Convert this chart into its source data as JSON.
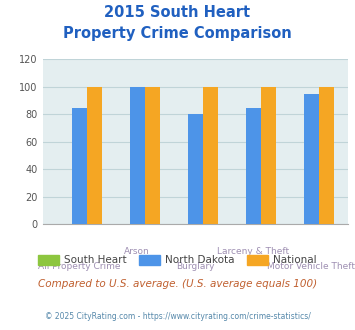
{
  "title_line1": "2015 South Heart",
  "title_line2": "Property Crime Comparison",
  "title_color": "#2060c0",
  "categories": [
    "All Property Crime",
    "Arson",
    "Burglary",
    "Larceny & Theft",
    "Motor Vehicle Theft"
  ],
  "south_heart": [
    0,
    0,
    0,
    0,
    0
  ],
  "north_dakota": [
    85,
    100,
    80,
    85,
    95
  ],
  "national": [
    100,
    100,
    100,
    100,
    100
  ],
  "colors": {
    "south_heart": "#8dc63f",
    "north_dakota": "#4d94e8",
    "national": "#f5a623"
  },
  "ylim": [
    0,
    120
  ],
  "yticks": [
    0,
    20,
    40,
    60,
    80,
    100,
    120
  ],
  "xlabel_top": [
    "",
    "Arson",
    "",
    "Larceny & Theft",
    ""
  ],
  "xlabel_bottom": [
    "All Property Crime",
    "",
    "Burglary",
    "",
    "Motor Vehicle Theft"
  ],
  "xlabel_color": "#9e8fb2",
  "grid_color": "#c0d4d8",
  "bg_color": "#e4eef0",
  "legend_labels": [
    "South Heart",
    "North Dakota",
    "National"
  ],
  "footnote1": "Compared to U.S. average. (U.S. average equals 100)",
  "footnote2": "© 2025 CityRating.com - https://www.cityrating.com/crime-statistics/",
  "footnote1_color": "#c06030",
  "footnote2_color": "#5588aa"
}
